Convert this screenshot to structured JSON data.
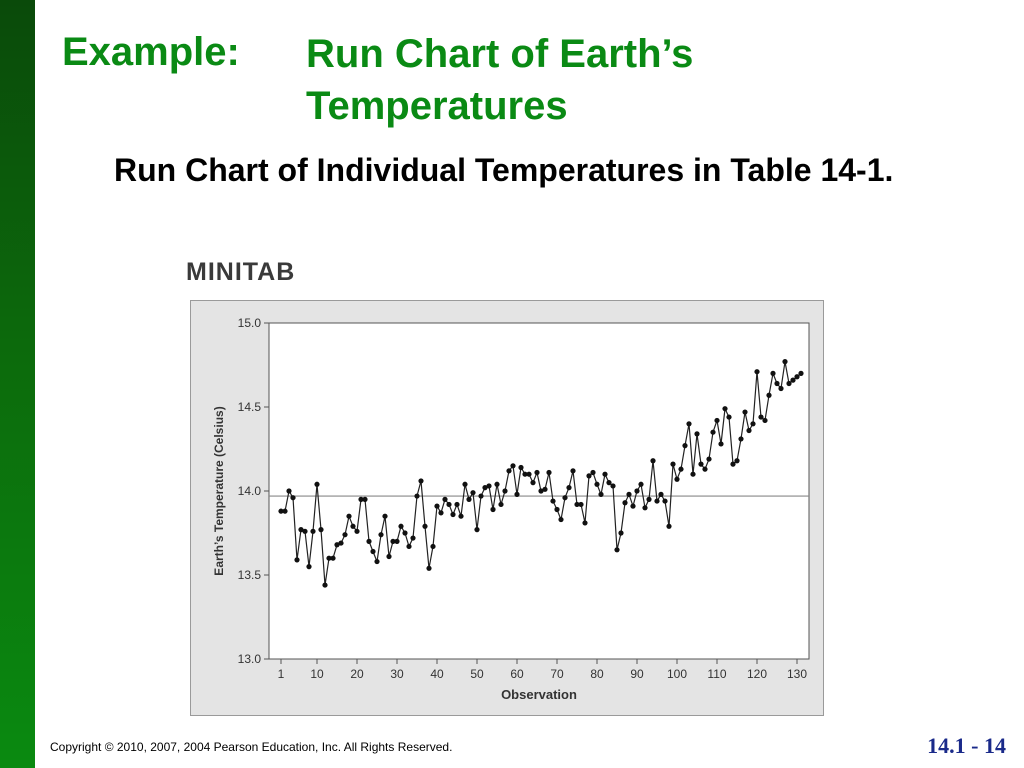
{
  "slide": {
    "title_label": "Example:",
    "title_text": "Run Chart of Earth’s Temperatures",
    "subtitle": "Run Chart of Individual Temperatures in Table 14-1.",
    "logo": "MINITAB",
    "copyright": "Copyright © 2010, 2007, 2004 Pearson Education, Inc. All Rights Reserved.",
    "page_number": "14.1 - 14"
  },
  "colors": {
    "accent_green": "#0a8a14",
    "page_number_blue": "#1a2a8a",
    "chart_frame_bg": "#e4e4e4"
  },
  "chart_data": {
    "type": "line",
    "title": "",
    "xlabel": "Observation",
    "ylabel": "Earth’s Temperature (Celsius)",
    "xlim": [
      1,
      130
    ],
    "ylim": [
      13.0,
      15.0
    ],
    "x_ticks": [
      1,
      10,
      20,
      30,
      40,
      50,
      60,
      70,
      80,
      90,
      100,
      110,
      120,
      130
    ],
    "y_ticks": [
      13.0,
      13.5,
      14.0,
      14.5,
      15.0
    ],
    "y_tick_labels": [
      "13.0",
      "13.5",
      "14.0",
      "14.5",
      "15.0"
    ],
    "center_line": 13.97,
    "grid": false,
    "series": [
      {
        "values": [
          13.88,
          13.88,
          14.0,
          13.96,
          13.59,
          13.77,
          13.76,
          13.55,
          13.76,
          14.04,
          13.77,
          13.44,
          13.6,
          13.6,
          13.68,
          13.69,
          13.74,
          13.85,
          13.79,
          13.76,
          13.95,
          13.95,
          13.7,
          13.64,
          13.58,
          13.74,
          13.85,
          13.61,
          13.7,
          13.7,
          13.79,
          13.75,
          13.67,
          13.72,
          13.97,
          14.06,
          13.79,
          13.54,
          13.67,
          13.91,
          13.87,
          13.95,
          13.92,
          13.86,
          13.92,
          13.85,
          14.04,
          13.95,
          13.99,
          13.77,
          13.97,
          14.02,
          14.03,
          13.89,
          14.04,
          13.92,
          14.0,
          14.12,
          14.15,
          13.98,
          14.14,
          14.1,
          14.1,
          14.05,
          14.11,
          14.0,
          14.01,
          14.11,
          13.94,
          13.89,
          13.83,
          13.96,
          14.02,
          14.12,
          13.92,
          13.92,
          13.81,
          14.09,
          14.11,
          14.04,
          13.98,
          14.1,
          14.05,
          14.03,
          13.65,
          13.75,
          13.93,
          13.98,
          13.91,
          14.0,
          14.04,
          13.9,
          13.95,
          14.18,
          13.94,
          13.98,
          13.94,
          13.79,
          14.16,
          14.07,
          14.13,
          14.27,
          14.4,
          14.1,
          14.34,
          14.16,
          14.13,
          14.19,
          14.35,
          14.42,
          14.28,
          14.49,
          14.44,
          14.16,
          14.18,
          14.31,
          14.47,
          14.36,
          14.4,
          14.71,
          14.44,
          14.42,
          14.57,
          14.7,
          14.64,
          14.61,
          14.77,
          14.64,
          14.66,
          14.68,
          14.7
        ]
      }
    ]
  }
}
